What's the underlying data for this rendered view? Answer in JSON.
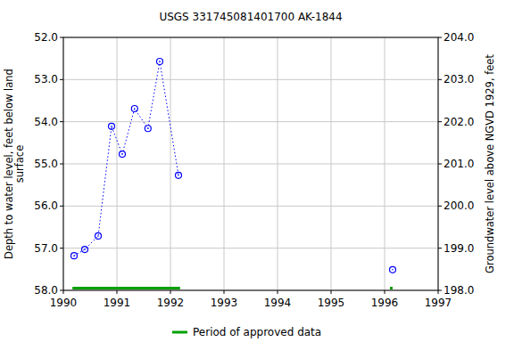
{
  "chart_data": {
    "type": "line",
    "title": "USGS 331745081401700 AK-1844",
    "ylabel": [
      "Depth to water level, feet below land",
      "surface"
    ],
    "y2label": "Groundwater level above NGVD 1929, feet",
    "xlim": [
      1990,
      1997
    ],
    "xticks": [
      1990,
      1991,
      1992,
      1993,
      1994,
      1995,
      1996,
      1997
    ],
    "ylim": [
      58,
      52
    ],
    "yticks": [
      {
        "value": 52,
        "label": "52.0"
      },
      {
        "value": 53,
        "label": "53.0"
      },
      {
        "value": 54,
        "label": "54.0"
      },
      {
        "value": 55,
        "label": "55.0"
      },
      {
        "value": 56,
        "label": "56.0"
      },
      {
        "value": 57,
        "label": "57.0"
      },
      {
        "value": 58,
        "label": "58.0"
      }
    ],
    "y2lim": [
      198,
      204
    ],
    "y2ticks": [
      {
        "value": 198,
        "label": "198.0"
      },
      {
        "value": 199,
        "label": "199.0"
      },
      {
        "value": 200,
        "label": "200.0"
      },
      {
        "value": 201,
        "label": "201.0"
      },
      {
        "value": 202,
        "label": "202.0"
      },
      {
        "value": 203,
        "label": "203.0"
      },
      {
        "value": 204,
        "label": "204.0"
      }
    ],
    "grid": true,
    "series": [
      {
        "color": "#0000ff",
        "marker": "circle",
        "line_style": "dotted",
        "x": [
          1990.2,
          1990.4,
          1990.65,
          1990.9,
          1991.1,
          1991.33,
          1991.58,
          1991.8,
          1992.15
        ],
        "values": [
          57.18,
          57.03,
          56.71,
          54.11,
          54.77,
          53.69,
          54.16,
          52.57,
          55.27
        ]
      },
      {
        "color": "#0000ff",
        "marker": "circle",
        "line_style": "dotted",
        "x": [
          1996.15
        ],
        "values": [
          57.51
        ]
      }
    ],
    "approved_data": {
      "name": "Period of approved data",
      "color": "#00a000",
      "periods": [
        [
          1990.17,
          1992.18
        ],
        [
          1996.1,
          1996.15
        ]
      ]
    },
    "legend": "bottom"
  }
}
